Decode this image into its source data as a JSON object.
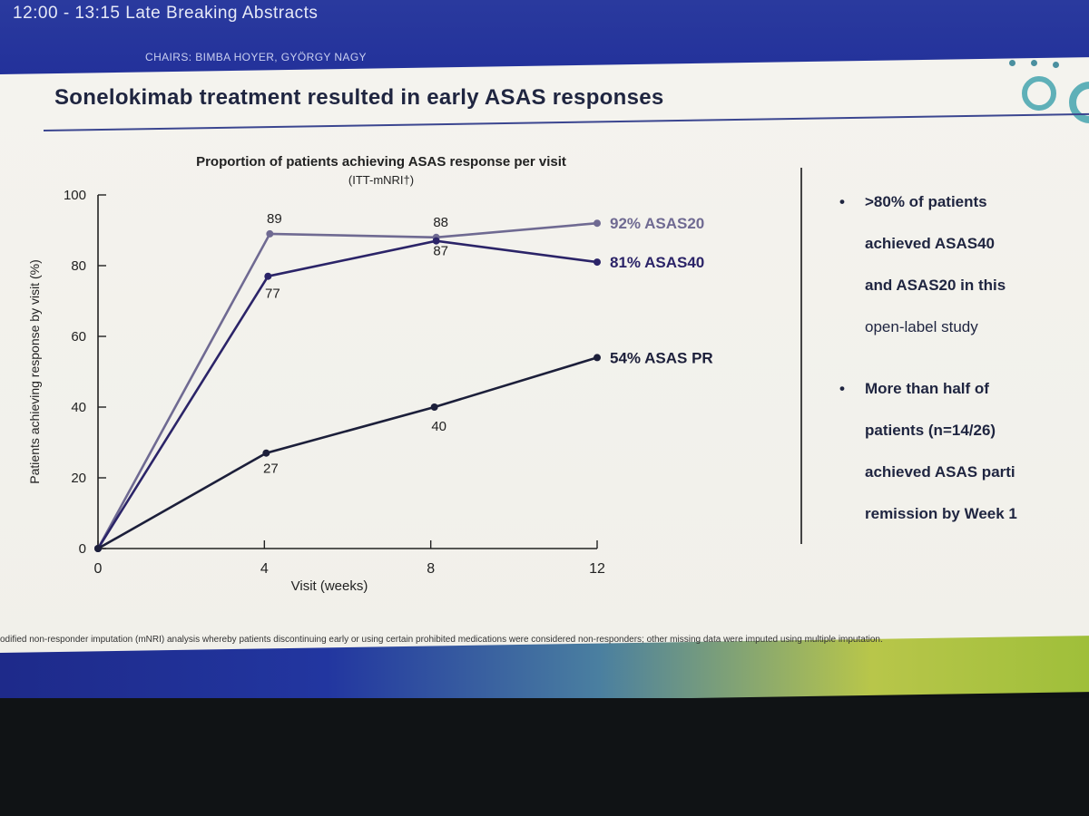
{
  "header": {
    "session": "12:00 - 13:15  Late Breaking Abstracts",
    "chairs": "CHAIRS: BIMBA HOYER, GYÖRGY NAGY"
  },
  "slide": {
    "title": "Sonelokimab treatment resulted in early ASAS responses",
    "footnote": "odified non-responder imputation (mNRI) analysis whereby patients discontinuing early or using certain prohibited medications were considered non-responders; other missing data were imputed using multiple imputation."
  },
  "bullets": [
    {
      "lines": [
        ">80% of patients",
        "achieved ASAS40",
        "and ASAS20 in this",
        "open-label study"
      ]
    },
    {
      "lines": [
        "More than half of",
        "patients (n=14/26)",
        "achieved ASAS parti",
        "remission by Week 1"
      ]
    }
  ],
  "colors": {
    "asas20": "#6f6a92",
    "asas40": "#2b2468",
    "asaspr": "#1c1f3a",
    "accent": "#2a3a9e"
  },
  "chart_data": {
    "type": "line",
    "title": "Proportion of patients achieving ASAS response per visit",
    "subtitle": "(ITT-mNRI†)",
    "xlabel": "Visit (weeks)",
    "ylabel": "Patients achieving response by visit (%)",
    "x": [
      0,
      4,
      8,
      12
    ],
    "x_ticks": [
      "0",
      "4",
      "8",
      "12"
    ],
    "y_ticks": [
      "0",
      "20",
      "40",
      "60",
      "80",
      "100"
    ],
    "ylim": [
      0,
      100
    ],
    "grid": false,
    "series": [
      {
        "name": "92% ASAS20",
        "values": [
          0,
          89,
          88,
          92
        ],
        "labels": [
          "",
          "89",
          "88",
          ""
        ]
      },
      {
        "name": "81% ASAS40",
        "values": [
          0,
          77,
          87,
          81
        ],
        "labels": [
          "",
          "77",
          "87",
          ""
        ]
      },
      {
        "name": "54% ASAS PR",
        "values": [
          0,
          27,
          40,
          54
        ],
        "labels": [
          "",
          "27",
          "40",
          ""
        ]
      }
    ]
  }
}
